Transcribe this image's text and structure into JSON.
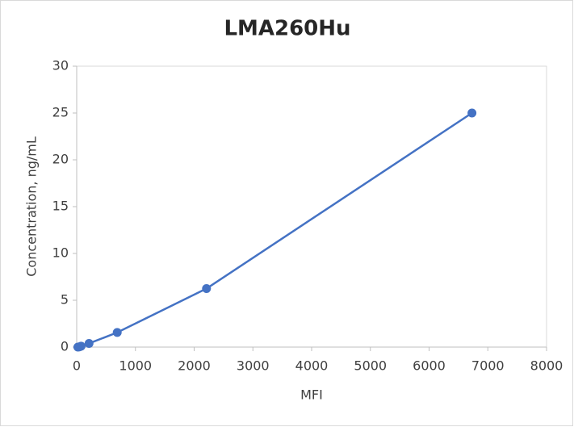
{
  "chart_data": {
    "type": "line",
    "title": "LMA260Hu",
    "x_label": "MFI",
    "y_label": "Concentration,  ng/mL",
    "x": [
      20,
      45,
      75,
      210,
      690,
      2210,
      6730
    ],
    "values": [
      0,
      0.024,
      0.098,
      0.39,
      1.56,
      6.25,
      25
    ],
    "color": "#4472c4",
    "xlim": [
      0,
      8000
    ],
    "xticks": [
      0,
      1000,
      2000,
      3000,
      4000,
      5000,
      6000,
      7000,
      8000
    ],
    "ylim": [
      0,
      30
    ],
    "yticks": [
      0,
      5,
      10,
      15,
      20,
      25,
      30
    ],
    "grid": false
  }
}
